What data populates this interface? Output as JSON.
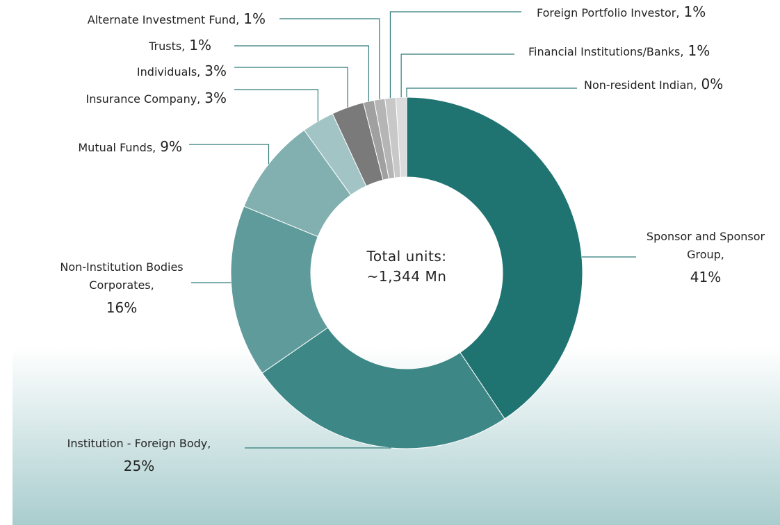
{
  "chart_data": {
    "type": "donut",
    "categories": [
      "Sponsor and Sponsor Group,",
      "Institution - Foreign Body,",
      "Non-Institution Bodies Corporates,",
      "Mutual Funds,",
      "Insurance Company,",
      "Individuals,",
      "Trusts,",
      "Alternate Investment Fund,",
      "Foreign Portfolio Investor,",
      "Financial Institutions/Banks,",
      "Non-resident Indian,"
    ],
    "values": [
      41,
      25,
      16,
      9,
      3,
      3,
      1,
      1,
      1,
      1,
      0
    ],
    "value_labels": [
      "41%",
      "25%",
      "16%",
      "9%",
      "3%",
      "3%",
      "1%",
      "1%",
      "1%",
      "1%",
      "0%"
    ],
    "colors": [
      "#1f7472",
      "#3d8786",
      "#5f9b9b",
      "#82afaf",
      "#a3c4c5",
      "#7a7a7a",
      "#a0a0a0",
      "#b5b5b5",
      "#c8c8c8",
      "#dcdcdc",
      "#eeeeee"
    ],
    "center_text": [
      "Total units:",
      "~1,344 Mn"
    ]
  }
}
